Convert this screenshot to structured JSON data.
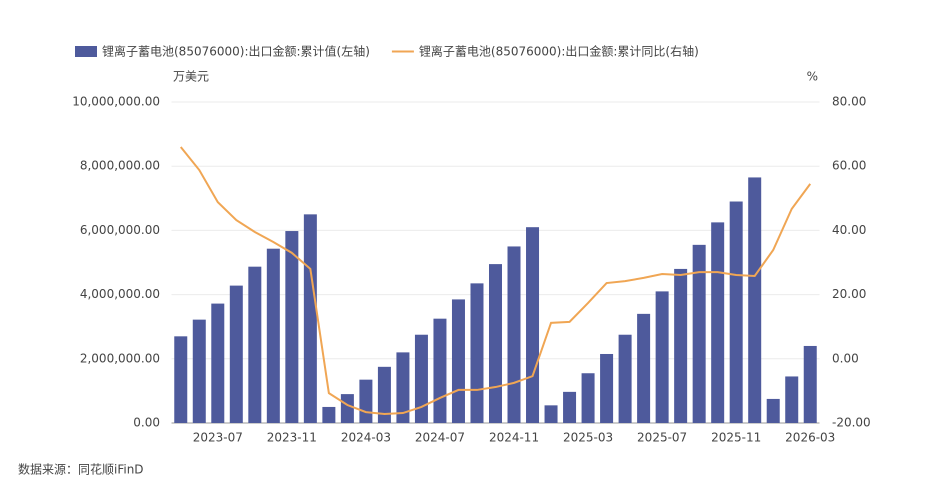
{
  "chart_data": {
    "type": "bar_line",
    "y_unit": "万美元",
    "y2_unit": "%",
    "source": "数据来源：同花顺iFinD",
    "categories": [
      null,
      null,
      "2023-07",
      null,
      null,
      null,
      "2023-11",
      null,
      null,
      null,
      "2024-03",
      null,
      null,
      null,
      "2024-07",
      null,
      null,
      null,
      "2024-11",
      null,
      null,
      null,
      "2025-03",
      null,
      null,
      null,
      "2025-07",
      null,
      null,
      null,
      "2025-11",
      null,
      null,
      null,
      "2026-03"
    ],
    "series": [
      {
        "name": "锂离子蓄电池(85076000):出口金额:累计值(左轴)",
        "color": "#4e5a9c",
        "type": "bar",
        "axis": "y",
        "values": [
          2700000,
          3220000,
          3720000,
          4280000,
          4870000,
          5430000,
          5980000,
          6500000,
          500000,
          900000,
          1350000,
          1750000,
          2200000,
          2750000,
          3250000,
          3850000,
          4350000,
          4950000,
          5500000,
          6100000,
          550000,
          970000,
          1550000,
          2150000,
          2750000,
          3400000,
          4100000,
          4800000,
          5550000,
          6250000,
          6900000,
          7650000,
          750000,
          1450000,
          2400000
        ]
      },
      {
        "name": "锂离子蓄电池(85076000):出口金额:累计同比(右轴)",
        "color": "#f0a654",
        "type": "line",
        "axis": "y2",
        "values": [
          66,
          58.8,
          48.8,
          43.2,
          39.5,
          36.4,
          33,
          28,
          -10.7,
          -14.4,
          -16.6,
          -17.2,
          -16.9,
          -15,
          -12.2,
          -9.7,
          -9.7,
          -8.8,
          -7.5,
          -5.4,
          11.2,
          11.5,
          17.4,
          23.6,
          24.2,
          25.2,
          26.4,
          26.1,
          27,
          27,
          26.1,
          25.8,
          33.9,
          46.7,
          54.5
        ]
      }
    ],
    "ylim": [
      0,
      10000000
    ],
    "yticks": [
      {
        "value": 0,
        "label": "0.00"
      },
      {
        "value": 2000000,
        "label": "2,000,000.00"
      },
      {
        "value": 4000000,
        "label": "4,000,000.00"
      },
      {
        "value": 6000000,
        "label": "6,000,000.00"
      },
      {
        "value": 8000000,
        "label": "8,000,000.00"
      },
      {
        "value": 10000000,
        "label": "10,000,000.00"
      }
    ],
    "y2lim": [
      -20,
      80
    ],
    "y2ticks": [
      {
        "value": -20,
        "label": "-20.00"
      },
      {
        "value": 0,
        "label": "0.00"
      },
      {
        "value": 20,
        "label": "20.00"
      },
      {
        "value": 40,
        "label": "40.00"
      },
      {
        "value": 60,
        "label": "60.00"
      },
      {
        "value": 80,
        "label": "80.00"
      }
    ],
    "grid": true
  }
}
